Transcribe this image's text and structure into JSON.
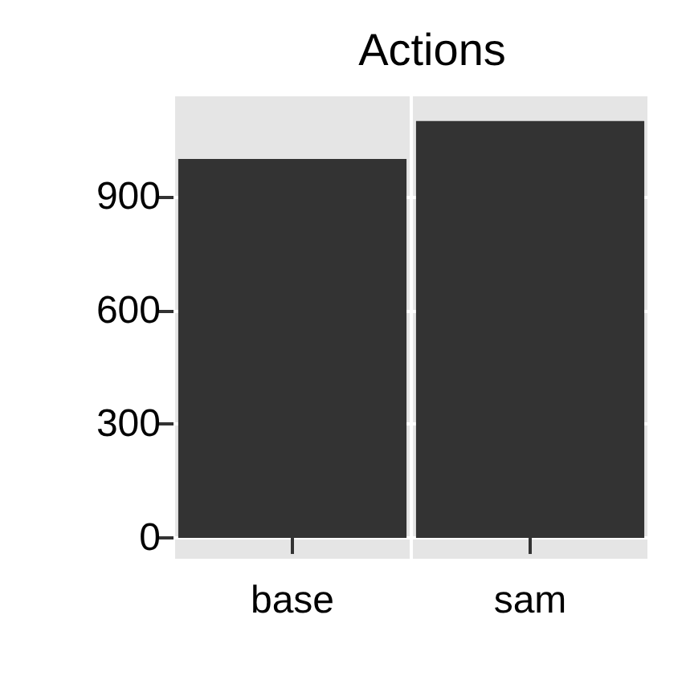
{
  "chart_data": {
    "type": "bar",
    "title": "Actions",
    "categories": [
      "base",
      "sam"
    ],
    "series": [
      {
        "color": "#333333",
        "values": [
          1000,
          1100
        ]
      }
    ],
    "ylim": [
      -55,
      1165
    ],
    "yticks": [
      0,
      300,
      600,
      900
    ],
    "grid": true
  }
}
